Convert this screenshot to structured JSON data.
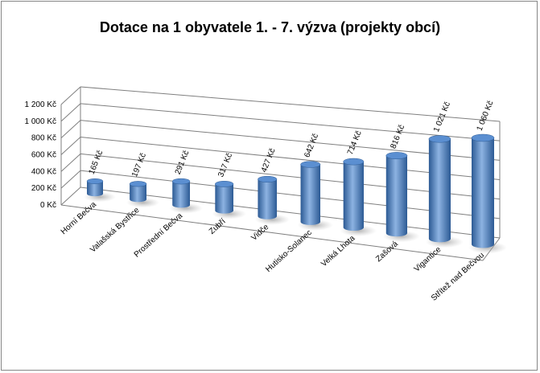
{
  "chart_data": {
    "type": "bar",
    "title": "Dotace na 1 obyvatele 1. - 7. výzva (projekty obcí)",
    "categories": [
      "Horní Bečva",
      "Valašská Bystřice",
      "Prostřední Bečva",
      "Zubří",
      "Vidče",
      "Hutisko-Solanec",
      "Velká Lhota",
      "Zašová",
      "Vigantice",
      "Střítež nad Bečvou"
    ],
    "values": [
      165,
      197,
      291,
      317,
      427,
      642,
      714,
      816,
      1021,
      1060
    ],
    "data_labels": [
      "165 Kč",
      "197 Kč",
      "291 Kč",
      "317 Kč",
      "427 Kč",
      "642 Kč",
      "714 Kč",
      "816 Kč",
      "1 021 Kč",
      "1 060 Kč"
    ],
    "y_ticks": [
      0,
      200,
      400,
      600,
      800,
      1000,
      1200
    ],
    "y_tick_labels": [
      "0 Kč",
      "200 Kč",
      "400 Kč",
      "600 Kč",
      "800 Kč",
      "1 000 Kč",
      "1 200 Kč"
    ],
    "ylim": [
      0,
      1200
    ],
    "xlabel": "",
    "ylabel": "",
    "grid": true,
    "legend": "none",
    "bar_shape": "cylinder-3d",
    "colors": {
      "bar": "#4a7ebb",
      "bar_light": "#8db3e2",
      "bar_dark": "#2c5a94",
      "bar_top": "#5b8fd1",
      "grid": "#7f7f7f"
    }
  }
}
